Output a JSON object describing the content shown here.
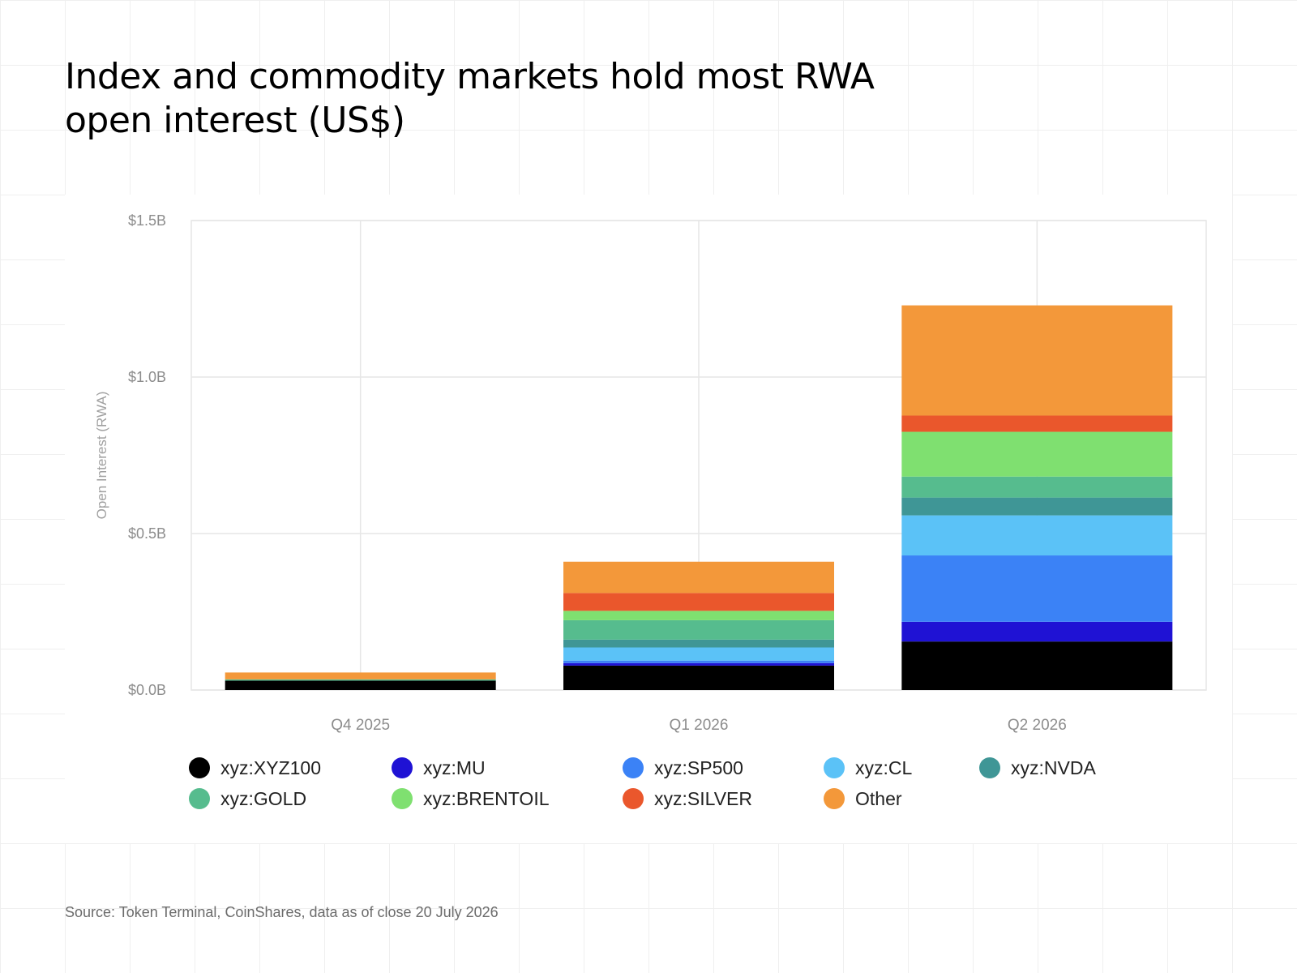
{
  "header": {
    "title_line1": "Index and commodity markets hold most RWA",
    "title_line2": "open interest (US$)"
  },
  "footer": {
    "source": "Source: Token Terminal, CoinShares, data as of close 20 July 2026"
  },
  "chart_data": {
    "type": "bar",
    "stacked": true,
    "title": "Index and commodity markets hold most RWA open interest (US$)",
    "ylabel": "Open Interest (RWA)",
    "xlabel": "",
    "ylim": [
      0,
      1.5
    ],
    "yticks": [
      {
        "value": 0,
        "label": "$0.0B"
      },
      {
        "value": 0.5,
        "label": "$0.5B"
      },
      {
        "value": 1.0,
        "label": "$1.0B"
      },
      {
        "value": 1.5,
        "label": "$1.5B"
      }
    ],
    "grid": true,
    "legend_position": "bottom",
    "categories": [
      "Q4 2025",
      "Q1 2026",
      "Q2 2026"
    ],
    "series": [
      {
        "name": "xyz:XYZ100",
        "color": "#000000",
        "values": [
          0.03,
          0.078,
          0.155
        ]
      },
      {
        "name": "xyz:MU",
        "color": "#1f12d4",
        "values": [
          0.0,
          0.008,
          0.063
        ]
      },
      {
        "name": "xyz:SP500",
        "color": "#3b82f6",
        "values": [
          0.0,
          0.008,
          0.212
        ]
      },
      {
        "name": "xyz:CL",
        "color": "#5bc2f7",
        "values": [
          0.0,
          0.042,
          0.128
        ]
      },
      {
        "name": "xyz:NVDA",
        "color": "#3f9696",
        "values": [
          0.0,
          0.025,
          0.057
        ]
      },
      {
        "name": "xyz:GOLD",
        "color": "#56bc8e",
        "values": [
          0.004,
          0.062,
          0.067
        ]
      },
      {
        "name": "xyz:BRENTOIL",
        "color": "#7fe070",
        "values": [
          0.0,
          0.03,
          0.143
        ]
      },
      {
        "name": "xyz:SILVER",
        "color": "#ea572c",
        "values": [
          0.0,
          0.057,
          0.052
        ]
      },
      {
        "name": "Other",
        "color": "#f3983a",
        "values": [
          0.022,
          0.1,
          0.352
        ]
      }
    ]
  }
}
